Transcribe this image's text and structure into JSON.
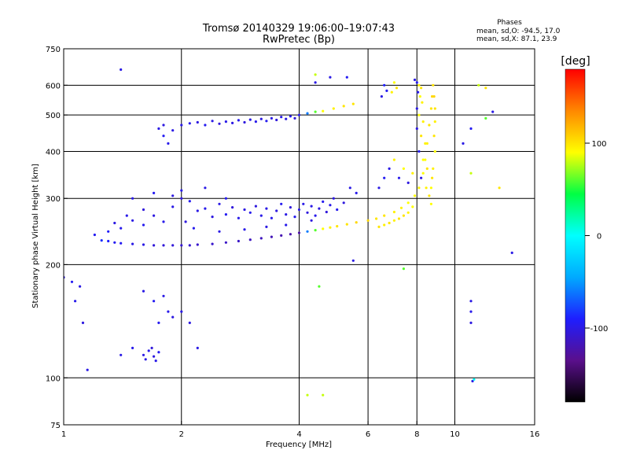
{
  "header": {
    "title": "Tromsø 20140329 19:06:00–19:07:43",
    "subtitle": "RwPretec (Bp)"
  },
  "stats": {
    "heading": "Phases",
    "line_o": "mean, sd,O: -94.5, 17.0",
    "line_x": "mean, sd,X:  87.1, 23.9"
  },
  "colorbar": {
    "unit_label": "[deg]",
    "range": [
      -180,
      180
    ],
    "ticks": [
      {
        "value": 100,
        "label": "100"
      },
      {
        "value": 0,
        "label": "0"
      },
      {
        "value": -100,
        "label": "-100"
      }
    ],
    "stops": [
      "#000000",
      "#5a0f8c",
      "#1e1eff",
      "#00aaff",
      "#00ffff",
      "#00ff44",
      "#ffff00",
      "#ff8800",
      "#ff0000"
    ]
  },
  "chart_data": {
    "type": "scatter",
    "xlabel": "Frequency [MHz]",
    "ylabel": "Stationary phase Virtual Height [km]",
    "x_scale": "log",
    "y_scale": "log",
    "xlim": [
      1,
      16
    ],
    "ylim": [
      75,
      750
    ],
    "x_ticks": [
      {
        "value": 1,
        "label": "1"
      },
      {
        "value": 2,
        "label": "2"
      },
      {
        "value": 4,
        "label": "4"
      },
      {
        "value": 6,
        "label": "6"
      },
      {
        "value": 8,
        "label": "8"
      },
      {
        "value": 10,
        "label": "10"
      },
      {
        "value": 16,
        "label": "16"
      }
    ],
    "y_ticks": [
      {
        "value": 75,
        "label": "75"
      },
      {
        "value": 100,
        "label": "100"
      },
      {
        "value": 200,
        "label": "200"
      },
      {
        "value": 300,
        "label": "300"
      },
      {
        "value": 400,
        "label": "400"
      },
      {
        "value": 500,
        "label": "500"
      },
      {
        "value": 600,
        "label": "600"
      },
      {
        "value": 750,
        "label": "750"
      }
    ],
    "grid_x": [
      2,
      4,
      6,
      8,
      10
    ],
    "grid_y": [
      100,
      200,
      300,
      400,
      500,
      600
    ],
    "grid": true,
    "points": [
      [
        1.25,
        232,
        -85
      ],
      [
        1.3,
        231,
        -90
      ],
      [
        1.35,
        229,
        -95
      ],
      [
        1.4,
        228,
        -95
      ],
      [
        1.5,
        227,
        -100
      ],
      [
        1.6,
        226,
        -100
      ],
      [
        1.7,
        225,
        -105
      ],
      [
        1.8,
        225,
        -105
      ],
      [
        1.9,
        225,
        -105
      ],
      [
        2.0,
        225,
        -108
      ],
      [
        2.1,
        225,
        -108
      ],
      [
        2.2,
        226,
        -110
      ],
      [
        2.4,
        227,
        -110
      ],
      [
        2.6,
        229,
        -112
      ],
      [
        2.8,
        231,
        -112
      ],
      [
        3.0,
        233,
        -115
      ],
      [
        3.2,
        235,
        -115
      ],
      [
        3.4,
        237,
        -118
      ],
      [
        3.6,
        239,
        -120
      ],
      [
        3.8,
        241,
        -122
      ],
      [
        4.0,
        243,
        -125
      ],
      [
        4.2,
        245,
        -60
      ],
      [
        4.4,
        247,
        60
      ],
      [
        4.6,
        249,
        90
      ],
      [
        4.8,
        251,
        95
      ],
      [
        5.0,
        253,
        100
      ],
      [
        5.3,
        256,
        100
      ],
      [
        5.6,
        259,
        105
      ],
      [
        6.0,
        262,
        105
      ],
      [
        6.3,
        265,
        100
      ],
      [
        6.6,
        270,
        100
      ],
      [
        7.0,
        276,
        95
      ],
      [
        7.3,
        283,
        95
      ],
      [
        7.6,
        292,
        90
      ],
      [
        7.9,
        305,
        90
      ],
      [
        8.1,
        320,
        95
      ],
      [
        8.3,
        350,
        90
      ],
      [
        8.4,
        380,
        90
      ],
      [
        8.5,
        420,
        95
      ],
      [
        8.6,
        470,
        100
      ],
      [
        8.7,
        520,
        100
      ],
      [
        8.75,
        560,
        105
      ],
      [
        1.2,
        240,
        -95
      ],
      [
        1.3,
        245,
        -92
      ],
      [
        1.4,
        250,
        -98
      ],
      [
        1.5,
        262,
        -100
      ],
      [
        1.6,
        255,
        -96
      ],
      [
        1.7,
        270,
        -102
      ],
      [
        1.8,
        260,
        -98
      ],
      [
        1.9,
        285,
        -100
      ],
      [
        2.0,
        300,
        -104
      ],
      [
        2.1,
        295,
        -96
      ],
      [
        2.2,
        278,
        -100
      ],
      [
        2.3,
        282,
        -98
      ],
      [
        2.4,
        268,
        -102
      ],
      [
        2.5,
        290,
        -100
      ],
      [
        2.6,
        272,
        -95
      ],
      [
        2.7,
        284,
        -104
      ],
      [
        2.8,
        266,
        -99
      ],
      [
        2.9,
        280,
        -101
      ],
      [
        3.0,
        275,
        -97
      ],
      [
        3.1,
        286,
        -103
      ],
      [
        3.2,
        270,
        -99
      ],
      [
        3.3,
        282,
        -100
      ],
      [
        3.4,
        266,
        -98
      ],
      [
        3.5,
        278,
        -102
      ],
      [
        3.6,
        290,
        -96
      ],
      [
        3.7,
        272,
        -100
      ],
      [
        3.8,
        284,
        -104
      ],
      [
        3.9,
        268,
        -97
      ],
      [
        4.0,
        280,
        -101
      ],
      [
        4.1,
        290,
        -99
      ],
      [
        4.2,
        275,
        -103
      ],
      [
        4.3,
        286,
        -100
      ],
      [
        4.4,
        270,
        -98
      ],
      [
        4.5,
        282,
        -102
      ],
      [
        4.6,
        294,
        -96
      ],
      [
        4.7,
        276,
        -104
      ],
      [
        4.8,
        288,
        -99
      ],
      [
        4.9,
        300,
        -101
      ],
      [
        5.0,
        280,
        -97
      ],
      [
        5.2,
        292,
        -103
      ],
      [
        5.4,
        320,
        -100
      ],
      [
        5.6,
        310,
        -98
      ],
      [
        1.5,
        300,
        -100
      ],
      [
        1.7,
        310,
        -95
      ],
      [
        1.9,
        305,
        -102
      ],
      [
        2.0,
        315,
        -98
      ],
      [
        2.3,
        320,
        -100
      ],
      [
        2.6,
        300,
        -96
      ],
      [
        1.6,
        280,
        -104
      ],
      [
        1.45,
        270,
        -99
      ],
      [
        1.35,
        258,
        -101
      ],
      [
        2.05,
        260,
        -103
      ],
      [
        2.15,
        250,
        -97
      ],
      [
        2.5,
        245,
        -100
      ],
      [
        2.9,
        248,
        -99
      ],
      [
        3.3,
        252,
        -101
      ],
      [
        3.7,
        255,
        -98
      ],
      [
        4.3,
        262,
        -102
      ],
      [
        2.0,
        470,
        -100
      ],
      [
        2.1,
        475,
        -98
      ],
      [
        2.2,
        478,
        -102
      ],
      [
        2.3,
        470,
        -96
      ],
      [
        2.4,
        482,
        -100
      ],
      [
        2.5,
        474,
        -104
      ],
      [
        2.6,
        480,
        -99
      ],
      [
        2.7,
        476,
        -101
      ],
      [
        2.8,
        484,
        -97
      ],
      [
        2.9,
        478,
        -103
      ],
      [
        3.0,
        486,
        -100
      ],
      [
        3.1,
        480,
        -98
      ],
      [
        3.2,
        488,
        -102
      ],
      [
        3.3,
        482,
        -96
      ],
      [
        3.4,
        490,
        -100
      ],
      [
        3.5,
        485,
        -104
      ],
      [
        3.6,
        494,
        -99
      ],
      [
        3.7,
        488,
        -101
      ],
      [
        3.8,
        496,
        -97
      ],
      [
        3.9,
        490,
        -103
      ],
      [
        4.0,
        500,
        -100
      ],
      [
        4.2,
        505,
        -60
      ],
      [
        4.4,
        510,
        60
      ],
      [
        4.6,
        512,
        90
      ],
      [
        4.9,
        520,
        95
      ],
      [
        5.2,
        528,
        100
      ],
      [
        5.5,
        535,
        100
      ],
      [
        1.75,
        460,
        -100
      ],
      [
        1.8,
        440,
        -95
      ],
      [
        1.85,
        420,
        -98
      ],
      [
        1.8,
        470,
        -102
      ],
      [
        1.9,
        455,
        -100
      ],
      [
        6.5,
        560,
        -100
      ],
      [
        6.7,
        580,
        -95
      ],
      [
        6.9,
        575,
        95
      ],
      [
        7.1,
        590,
        100
      ],
      [
        6.6,
        600,
        -90
      ],
      [
        7.0,
        610,
        90
      ],
      [
        7.9,
        620,
        -100
      ],
      [
        8.0,
        610,
        -95
      ],
      [
        8.1,
        600,
        95
      ],
      [
        8.2,
        590,
        100
      ],
      [
        8.05,
        575,
        -98
      ],
      [
        8.15,
        560,
        90
      ],
      [
        8.25,
        540,
        95
      ],
      [
        8.0,
        520,
        -100
      ],
      [
        8.1,
        500,
        90
      ],
      [
        8.3,
        480,
        95
      ],
      [
        8.0,
        460,
        -102
      ],
      [
        8.2,
        440,
        100
      ],
      [
        8.4,
        420,
        95
      ],
      [
        8.1,
        400,
        -96
      ],
      [
        8.3,
        380,
        90
      ],
      [
        8.5,
        360,
        100
      ],
      [
        8.2,
        340,
        -100
      ],
      [
        8.45,
        320,
        95
      ],
      [
        8.6,
        305,
        100
      ],
      [
        8.7,
        290,
        90
      ],
      [
        8.8,
        600,
        100
      ],
      [
        8.85,
        560,
        105
      ],
      [
        8.9,
        520,
        100
      ],
      [
        8.9,
        480,
        95
      ],
      [
        8.85,
        440,
        100
      ],
      [
        8.9,
        400,
        90
      ],
      [
        8.8,
        360,
        95
      ],
      [
        8.75,
        340,
        100
      ],
      [
        8.7,
        320,
        90
      ],
      [
        7.4,
        270,
        100
      ],
      [
        7.6,
        275,
        95
      ],
      [
        7.8,
        285,
        90
      ],
      [
        7.2,
        265,
        100
      ],
      [
        7.0,
        262,
        95
      ],
      [
        6.8,
        258,
        100
      ],
      [
        6.6,
        255,
        95
      ],
      [
        6.4,
        252,
        100
      ],
      [
        6.4,
        320,
        -100
      ],
      [
        6.6,
        340,
        -95
      ],
      [
        6.8,
        360,
        -100
      ],
      [
        7.0,
        380,
        95
      ],
      [
        7.2,
        340,
        -98
      ],
      [
        7.4,
        360,
        90
      ],
      [
        7.6,
        330,
        -102
      ],
      [
        7.8,
        350,
        95
      ],
      [
        1.0,
        185,
        -100
      ],
      [
        1.05,
        180,
        -95
      ],
      [
        1.1,
        175,
        -100
      ],
      [
        1.07,
        160,
        -98
      ],
      [
        1.12,
        140,
        -102
      ],
      [
        1.15,
        105,
        -100
      ],
      [
        1.6,
        170,
        -100
      ],
      [
        1.7,
        160,
        -95
      ],
      [
        1.8,
        165,
        -100
      ],
      [
        1.85,
        150,
        -98
      ],
      [
        1.9,
        145,
        -102
      ],
      [
        1.75,
        140,
        -96
      ],
      [
        2.0,
        150,
        -100
      ],
      [
        1.6,
        115,
        -100
      ],
      [
        1.65,
        118,
        -98
      ],
      [
        1.7,
        114,
        -102
      ],
      [
        1.75,
        117,
        -96
      ],
      [
        1.62,
        112,
        -100
      ],
      [
        1.68,
        120,
        -104
      ],
      [
        1.72,
        111,
        -99
      ],
      [
        1.4,
        115,
        -100
      ],
      [
        1.5,
        120,
        -98
      ],
      [
        2.1,
        140,
        -102
      ],
      [
        2.2,
        120,
        -100
      ],
      [
        1.4,
        660,
        -100
      ],
      [
        4.4,
        640,
        80
      ],
      [
        4.8,
        630,
        -100
      ],
      [
        5.3,
        630,
        -95
      ],
      [
        4.4,
        610,
        -100
      ],
      [
        11.0,
        160,
        -100
      ],
      [
        11.0,
        150,
        -98
      ],
      [
        11.0,
        140,
        -102
      ],
      [
        11.1,
        98,
        -100
      ],
      [
        11.2,
        99,
        0
      ],
      [
        11.0,
        350,
        80
      ],
      [
        10.5,
        420,
        -100
      ],
      [
        11.0,
        460,
        -95
      ],
      [
        12.0,
        490,
        60
      ],
      [
        13.0,
        320,
        100
      ],
      [
        14.0,
        215,
        -100
      ],
      [
        12.5,
        510,
        -100
      ],
      [
        11.5,
        600,
        80
      ],
      [
        12.0,
        590,
        100
      ],
      [
        7.4,
        195,
        60
      ],
      [
        4.2,
        90,
        80
      ],
      [
        4.6,
        90,
        80
      ],
      [
        4.5,
        175,
        60
      ],
      [
        5.5,
        205,
        -100
      ]
    ]
  }
}
